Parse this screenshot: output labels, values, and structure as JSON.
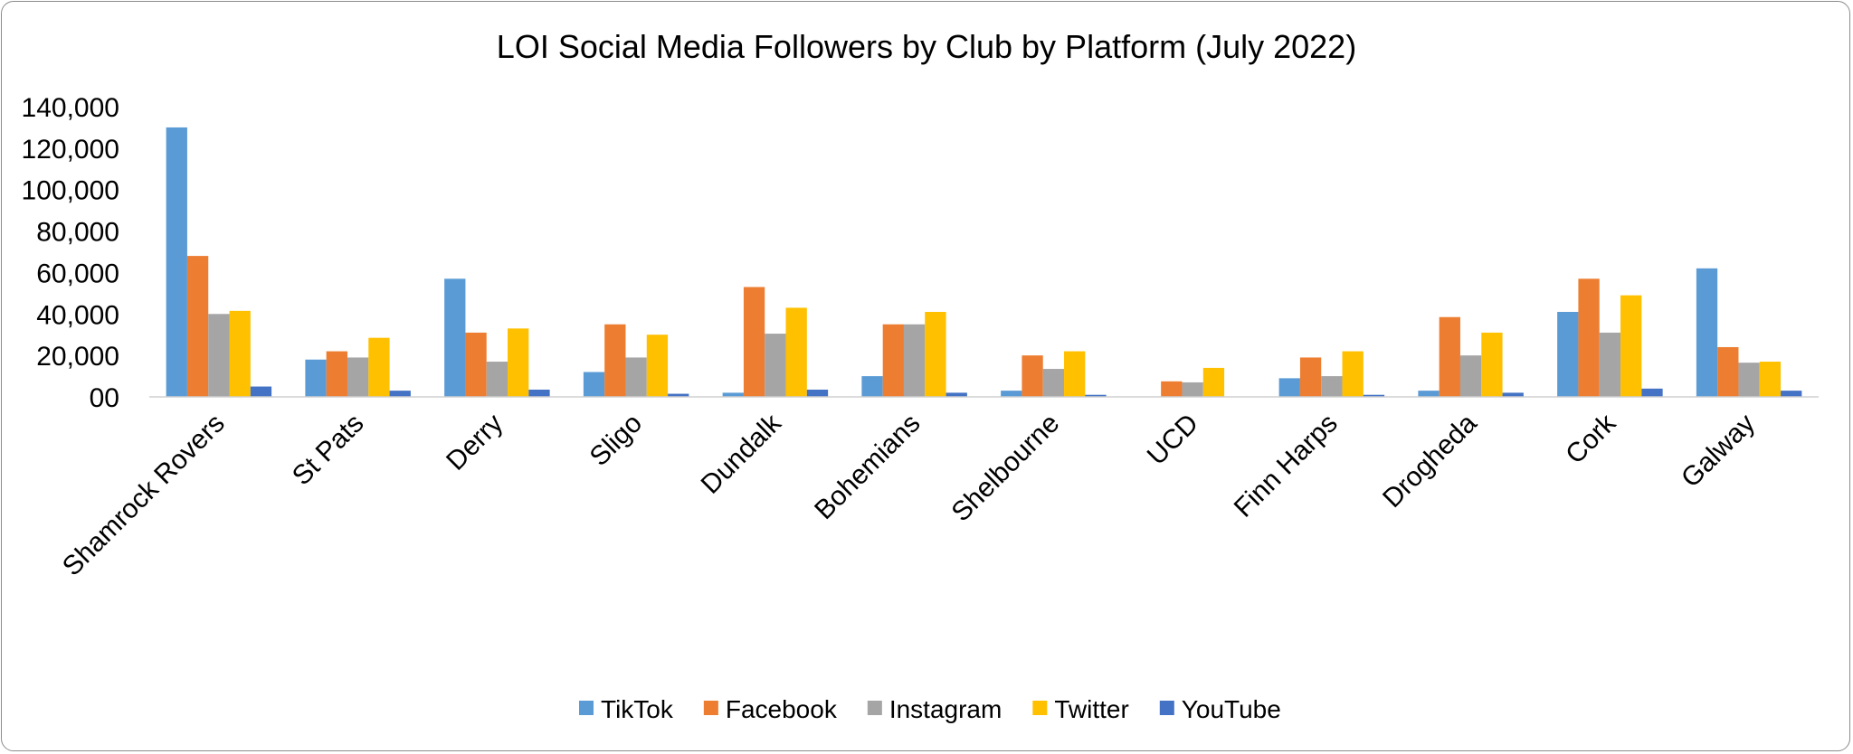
{
  "chart_data": {
    "type": "bar",
    "title": "LOI Social Media Followers by Club by Platform (July 2022)",
    "xlabel": "",
    "ylabel": "",
    "ylim": [
      0,
      140000
    ],
    "yticks": [
      0,
      20000,
      40000,
      60000,
      80000,
      100000,
      120000,
      140000
    ],
    "ytick_labels": [
      "00",
      "20,000",
      "40,000",
      "60,000",
      "80,000",
      "100,000",
      "120,000",
      "140,000"
    ],
    "grid": false,
    "legend_position": "bottom",
    "categories": [
      "Shamrock Rovers",
      "St Pats",
      "Derry",
      "Sligo",
      "Dundalk",
      "Bohemians",
      "Shelbourne",
      "UCD",
      "Finn Harps",
      "Drogheda",
      "Cork",
      "Galway"
    ],
    "series": [
      {
        "name": "TikTok",
        "color": "#5b9bd5",
        "values": [
          130000,
          18000,
          57000,
          12000,
          2000,
          10000,
          3000,
          0,
          9000,
          3000,
          41000,
          62000
        ]
      },
      {
        "name": "Facebook",
        "color": "#ed7d31",
        "values": [
          68000,
          22000,
          31000,
          35000,
          53000,
          35000,
          20000,
          7500,
          19000,
          38500,
          57000,
          24000
        ]
      },
      {
        "name": "Instagram",
        "color": "#a5a5a5",
        "values": [
          40000,
          19000,
          17000,
          19000,
          30500,
          35000,
          13500,
          7000,
          10000,
          20000,
          31000,
          16500
        ]
      },
      {
        "name": "Twitter",
        "color": "#ffc000",
        "values": [
          41500,
          28500,
          33000,
          30000,
          43000,
          41000,
          22000,
          14000,
          22000,
          31000,
          49000,
          17000
        ]
      },
      {
        "name": "YouTube",
        "color": "#4472c4",
        "values": [
          5000,
          3000,
          3500,
          1500,
          3500,
          2000,
          1000,
          0,
          1000,
          2000,
          4000,
          3000
        ]
      }
    ]
  }
}
